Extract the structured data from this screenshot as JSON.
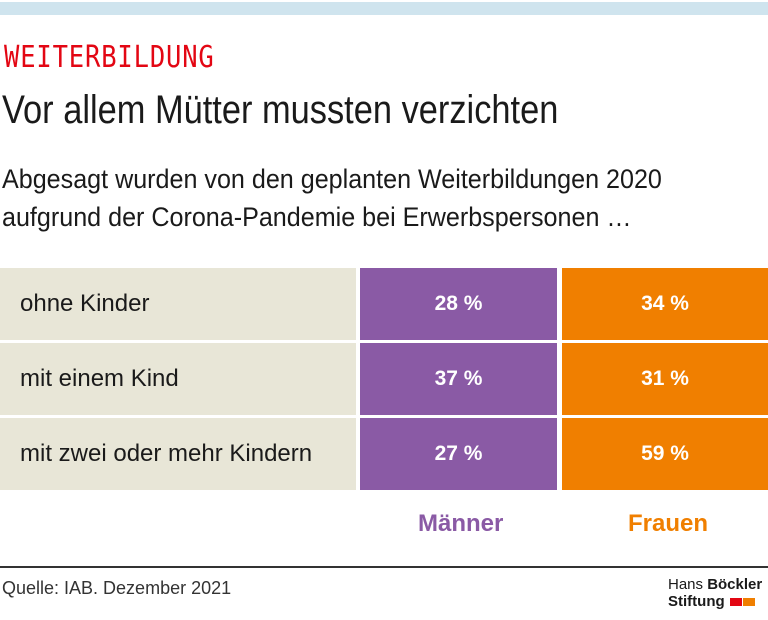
{
  "kicker": "WEITERBILDUNG",
  "title": "Vor allem Mütter mussten verzichten",
  "subtitle_lines": [
    "Abgesagt wurden von den geplanten Weiterbildungen 2020",
    "aufgrund der Corona-Pandemie bei Erwerbspersonen …"
  ],
  "chart_data": {
    "type": "table",
    "categories": [
      "ohne Kinder",
      "mit einem Kind",
      "mit zwei oder mehr Kindern"
    ],
    "series": [
      {
        "name": "Männer",
        "values": [
          28,
          37,
          27
        ],
        "color": "#8a5aa5"
      },
      {
        "name": "Frauen",
        "values": [
          34,
          31,
          59
        ],
        "color": "#f07f00"
      }
    ],
    "display": {
      "m": [
        "28 %",
        "37 %",
        "27 %"
      ],
      "f": [
        "34 %",
        "31 %",
        "59 %"
      ]
    }
  },
  "source": "Quelle: IAB. Dezember 2021",
  "logo": {
    "line1a": "Hans ",
    "line1b": "Böckler",
    "line2": "Stiftung"
  },
  "colors": {
    "kicker": "#e30613",
    "label_bg": "#e8e6d7"
  }
}
